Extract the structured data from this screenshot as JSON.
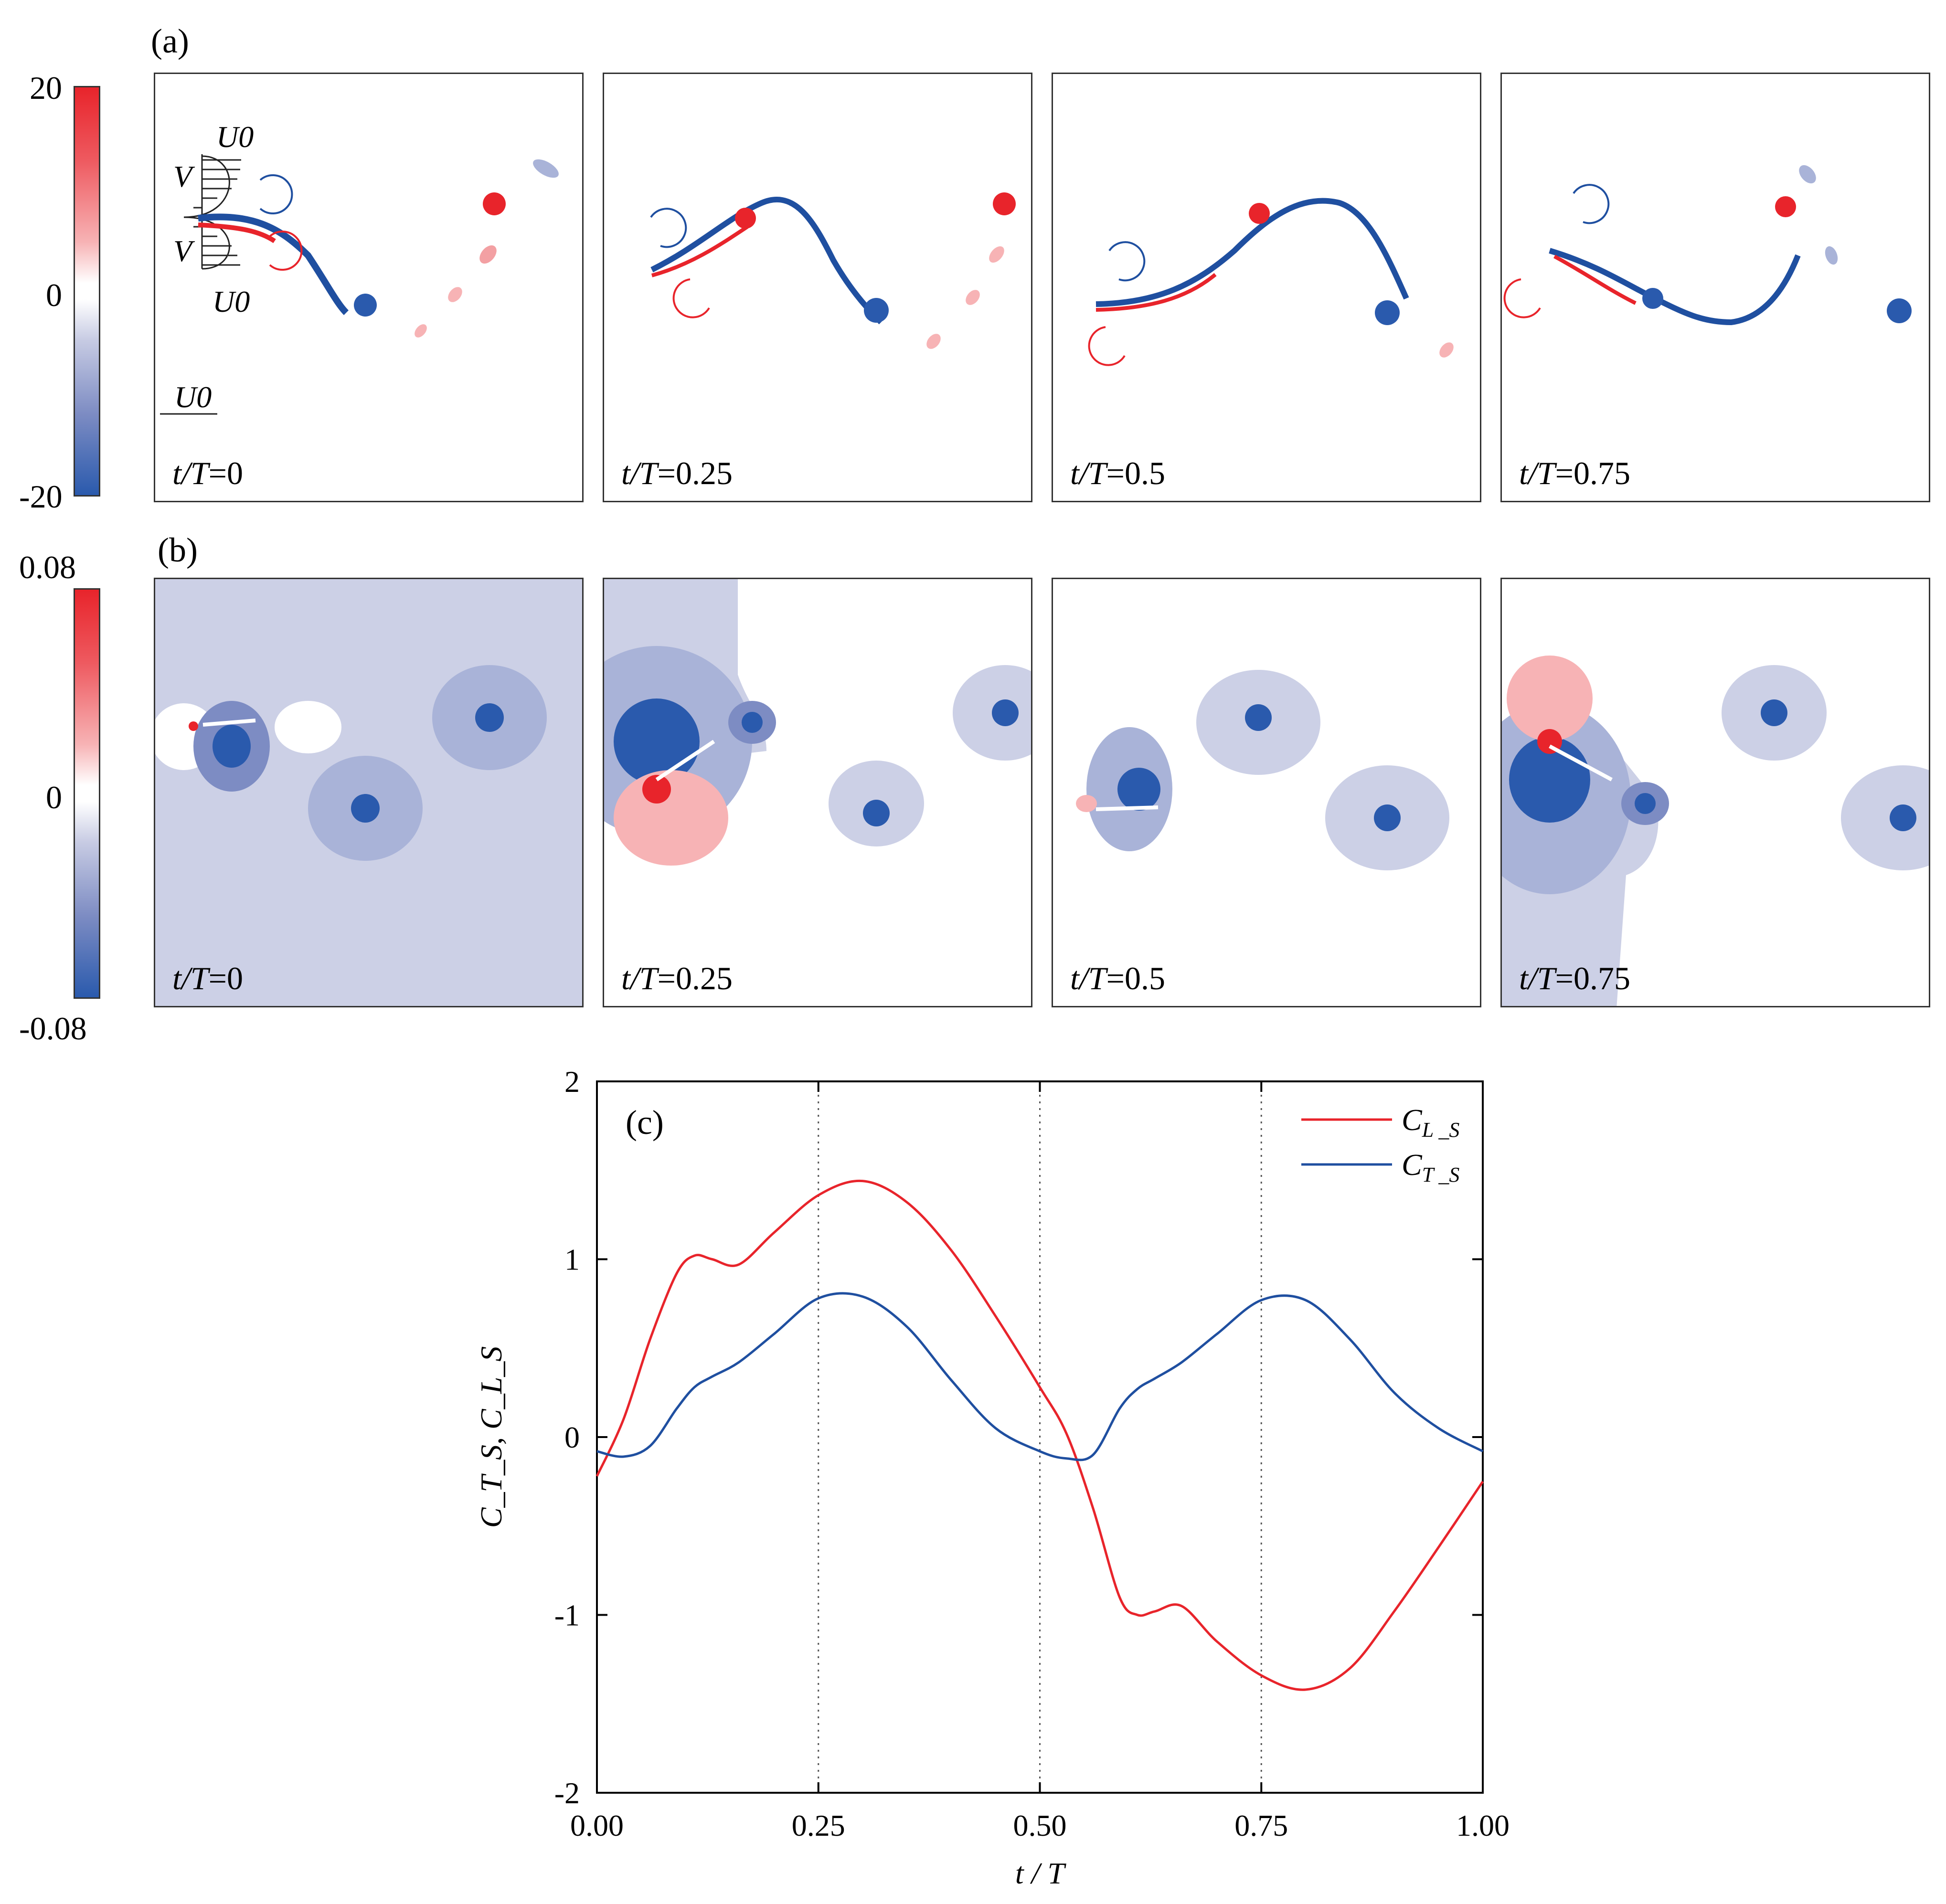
{
  "panel_letters": {
    "a": "(a)",
    "b": "(b)",
    "c": "(c)"
  },
  "colorbar_a": {
    "max": "20",
    "zero": "0",
    "min": "-20"
  },
  "colorbar_b": {
    "max": "0.08",
    "zero": "0",
    "min": "-0.08"
  },
  "time_prefix": "t/T",
  "row_a": [
    {
      "label": "t/T=0",
      "value": "0"
    },
    {
      "label": "t/T=0.25",
      "value": "0.25"
    },
    {
      "label": "t/T=0.5",
      "value": "0.5"
    },
    {
      "label": "t/T=0.75",
      "value": "0.75"
    }
  ],
  "row_b": [
    {
      "label": "t/T=0",
      "value": "0"
    },
    {
      "label": "t/T=0.25",
      "value": "0.25"
    },
    {
      "label": "t/T=0.5",
      "value": "0.5"
    },
    {
      "label": "t/T=0.75",
      "value": "0.75"
    }
  ],
  "inset_labels": {
    "u0_top": "U0",
    "v_top": "V",
    "v_bottom": "V",
    "u0_bottom": "U0",
    "u0_scale": "U0"
  },
  "colors": {
    "red": "#e8242b",
    "blue": "#1f4fa0",
    "axis": "#000000",
    "grid": "#555555"
  },
  "chart_data": {
    "type": "line",
    "panel_label": "(c)",
    "xlabel": "t / T",
    "ylabel": "C_T_S, C_L_S",
    "xlim": [
      0,
      1
    ],
    "ylim": [
      -2,
      2
    ],
    "x_ticks": [
      "0.00",
      "0.25",
      "0.50",
      "0.75",
      "1.00"
    ],
    "y_ticks": [
      "-2",
      "-1",
      "0",
      "1",
      "2"
    ],
    "vertical_reference_lines": [
      0.25,
      0.5,
      0.75
    ],
    "legend_position": "top-right",
    "x": [
      0,
      0.03,
      0.06,
      0.09,
      0.11,
      0.13,
      0.16,
      0.2,
      0.25,
      0.3,
      0.35,
      0.4,
      0.45,
      0.5,
      0.53,
      0.56,
      0.59,
      0.61,
      0.63,
      0.66,
      0.7,
      0.75,
      0.8,
      0.85,
      0.9,
      0.95,
      1.0
    ],
    "series": [
      {
        "name": "C_L_S",
        "color": "#e8242b",
        "values": [
          -0.22,
          0.1,
          0.55,
          0.92,
          1.02,
          1.0,
          0.97,
          1.15,
          1.36,
          1.44,
          1.32,
          1.05,
          0.68,
          0.28,
          0.02,
          -0.4,
          -0.9,
          -1.0,
          -0.98,
          -0.95,
          -1.15,
          -1.34,
          -1.42,
          -1.3,
          -0.98,
          -0.62,
          -0.25
        ]
      },
      {
        "name": "C_T_S",
        "color": "#1f4fa0",
        "values": [
          -0.08,
          -0.11,
          -0.05,
          0.16,
          0.28,
          0.34,
          0.42,
          0.58,
          0.78,
          0.79,
          0.62,
          0.32,
          0.05,
          -0.08,
          -0.12,
          -0.1,
          0.16,
          0.27,
          0.33,
          0.42,
          0.58,
          0.77,
          0.77,
          0.55,
          0.25,
          0.05,
          -0.08
        ]
      }
    ],
    "legend": [
      {
        "main": "C",
        "sub": "L _S",
        "color": "#e8242b"
      },
      {
        "main": "C",
        "sub": "T _S",
        "color": "#1f4fa0"
      }
    ]
  }
}
